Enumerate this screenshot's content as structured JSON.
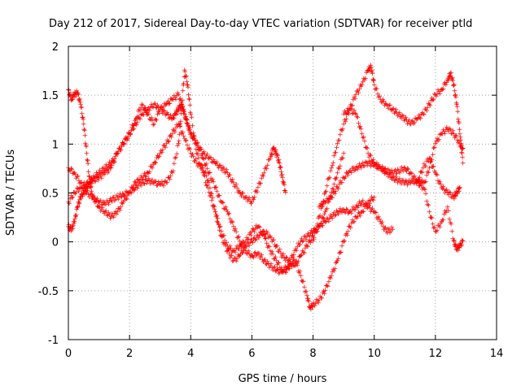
{
  "chart_data": {
    "type": "scatter",
    "title": "Day 212 of 2017, Sidereal Day-to-day VTEC variation (SDTVAR) for receiver ptld",
    "xlabel": "GPS time / hours",
    "ylabel": "SDTVAR / TECUs",
    "xlim": [
      0,
      14
    ],
    "ylim": [
      -1,
      2
    ],
    "xticks": [
      "0",
      "2",
      "4",
      "6",
      "8",
      "10",
      "12",
      "14"
    ],
    "yticks": [
      "-1",
      "-0.5",
      "0",
      "0.5",
      "1",
      "1.5",
      "2"
    ],
    "grid": true,
    "marker": "+",
    "color": "#ff0000",
    "series": [
      {
        "x": [
          0.0,
          0.1,
          0.2,
          0.3,
          0.4,
          0.5,
          0.6,
          0.7,
          0.8,
          1.0,
          1.2,
          1.4,
          1.6,
          1.8,
          2.0,
          2.2,
          2.4,
          2.6,
          2.8,
          3.0,
          3.2,
          3.4,
          3.5,
          3.6,
          3.7,
          3.8,
          3.9,
          4.0,
          4.2,
          4.4,
          4.6,
          4.8,
          5.0,
          5.2,
          5.4,
          5.6,
          5.8,
          6.0,
          6.2,
          6.4,
          6.6,
          6.7,
          6.8,
          6.9,
          7.0,
          7.1
        ],
        "y": [
          0.15,
          0.12,
          0.2,
          0.35,
          0.45,
          0.5,
          0.55,
          0.6,
          0.65,
          0.7,
          0.75,
          0.8,
          0.9,
          1.0,
          1.1,
          1.2,
          1.3,
          1.35,
          1.4,
          1.35,
          1.3,
          1.25,
          1.3,
          1.35,
          1.4,
          1.3,
          1.2,
          1.1,
          1.0,
          0.9,
          0.85,
          0.8,
          0.75,
          0.7,
          0.6,
          0.5,
          0.45,
          0.4,
          0.55,
          0.7,
          0.85,
          0.95,
          0.9,
          0.8,
          0.65,
          0.5
        ]
      },
      {
        "x": [
          0.0,
          0.1,
          0.2,
          0.3,
          0.4,
          0.5,
          0.6,
          0.7,
          0.8,
          1.0,
          1.2,
          1.4,
          1.6,
          1.8,
          2.0,
          2.2,
          2.4,
          2.6,
          2.8,
          3.0,
          3.2,
          3.4,
          3.6,
          3.8,
          4.0,
          4.2,
          4.4,
          4.6,
          4.8,
          5.0,
          5.2,
          5.4,
          5.6,
          5.8,
          6.0,
          6.2,
          6.4,
          6.6,
          6.8,
          7.0,
          7.2,
          7.4,
          7.6,
          7.8,
          8.0,
          8.2,
          8.4,
          8.6,
          8.8,
          9.0
        ],
        "y": [
          1.55,
          1.45,
          1.5,
          1.52,
          1.4,
          1.2,
          0.9,
          0.6,
          0.45,
          0.35,
          0.3,
          0.25,
          0.3,
          0.4,
          0.5,
          0.6,
          0.65,
          0.7,
          0.8,
          0.9,
          1.0,
          1.1,
          1.2,
          1.05,
          0.9,
          0.8,
          0.75,
          0.6,
          0.3,
          0.05,
          -0.1,
          -0.2,
          -0.15,
          -0.05,
          0.0,
          0.05,
          0.1,
          0.05,
          -0.05,
          -0.15,
          -0.2,
          -0.25,
          -0.15,
          -0.05,
          0.05,
          0.15,
          0.3,
          0.5,
          0.7,
          0.9
        ]
      },
      {
        "x": [
          0.0,
          0.2,
          0.4,
          0.6,
          0.8,
          1.0,
          1.2,
          1.4,
          1.6,
          1.8,
          2.0,
          2.2,
          2.4,
          2.6,
          2.8,
          3.0,
          3.2,
          3.4,
          3.6,
          3.7,
          3.8,
          3.9,
          4.0,
          4.2,
          4.4,
          4.6,
          4.8,
          5.0,
          5.2,
          5.4,
          5.6,
          5.8,
          6.0,
          6.2,
          6.4,
          6.6,
          6.8,
          7.0,
          7.2,
          7.4,
          7.6,
          7.8,
          8.0,
          8.2,
          8.4,
          8.6,
          8.8,
          9.0,
          9.2,
          9.4,
          9.6,
          9.8,
          10.0,
          10.2,
          10.4,
          10.6
        ],
        "y": [
          0.75,
          0.7,
          0.6,
          0.5,
          0.45,
          0.4,
          0.38,
          0.42,
          0.45,
          0.48,
          0.5,
          0.55,
          0.6,
          0.62,
          0.6,
          0.58,
          0.6,
          0.7,
          1.0,
          1.35,
          1.75,
          1.6,
          1.3,
          0.9,
          0.7,
          0.5,
          0.3,
          0.1,
          -0.05,
          -0.1,
          -0.05,
          0.0,
          0.1,
          0.15,
          0.05,
          -0.1,
          -0.2,
          -0.3,
          -0.25,
          -0.1,
          0.0,
          0.05,
          0.1,
          0.15,
          0.2,
          0.25,
          0.3,
          0.32,
          0.3,
          0.35,
          0.4,
          0.35,
          0.3,
          0.2,
          0.1,
          0.12
        ]
      },
      {
        "x": [
          0.0,
          0.2,
          0.4,
          0.6,
          0.8,
          1.0,
          1.2,
          1.4,
          1.6,
          1.8,
          2.0,
          2.2,
          2.4,
          2.6,
          2.8,
          3.0,
          3.2,
          3.4,
          3.6,
          3.8,
          4.0,
          4.2,
          4.4,
          4.6,
          4.8,
          5.0,
          5.2,
          5.4,
          5.6,
          5.8,
          6.0,
          6.2,
          6.4,
          6.6,
          6.8,
          7.0,
          7.2,
          7.4,
          7.6,
          7.8,
          7.9,
          8.0,
          8.2,
          8.4,
          8.6,
          8.8,
          9.0,
          9.2,
          9.4,
          9.6,
          9.8,
          10.0
        ],
        "y": [
          0.4,
          0.5,
          0.55,
          0.6,
          0.62,
          0.65,
          0.7,
          0.75,
          0.9,
          1.0,
          1.1,
          1.25,
          1.4,
          1.3,
          1.2,
          1.35,
          1.4,
          1.45,
          1.5,
          1.3,
          1.1,
          1.0,
          0.85,
          0.7,
          0.55,
          0.4,
          0.3,
          0.15,
          0.0,
          -0.1,
          -0.15,
          -0.12,
          -0.2,
          -0.25,
          -0.3,
          -0.32,
          -0.28,
          -0.2,
          -0.35,
          -0.55,
          -0.68,
          -0.65,
          -0.6,
          -0.5,
          -0.35,
          -0.2,
          0.0,
          0.15,
          0.25,
          0.3,
          0.4,
          0.45
        ]
      },
      {
        "x": [
          8.0,
          8.2,
          8.4,
          8.6,
          8.8,
          9.0,
          9.2,
          9.4,
          9.6,
          9.8,
          9.9,
          10.0,
          10.2,
          10.4,
          10.6,
          10.8,
          11.0,
          11.2,
          11.4,
          11.6,
          11.8,
          12.0,
          12.2,
          12.4,
          12.5,
          12.6,
          12.7,
          12.8,
          12.9
        ],
        "y": [
          0.0,
          0.25,
          0.5,
          0.75,
          1.0,
          1.2,
          1.35,
          1.5,
          1.6,
          1.75,
          1.78,
          1.6,
          1.45,
          1.4,
          1.35,
          1.3,
          1.25,
          1.2,
          1.25,
          1.3,
          1.4,
          1.5,
          1.55,
          1.65,
          1.72,
          1.6,
          1.4,
          1.1,
          0.8
        ]
      },
      {
        "x": [
          8.2,
          8.4,
          8.6,
          8.8,
          9.0,
          9.2,
          9.4,
          9.6,
          9.8,
          10.0,
          10.2,
          10.4,
          10.6,
          10.8,
          11.0,
          11.2,
          11.4,
          11.6,
          11.8,
          12.0,
          12.2,
          12.4,
          12.6,
          12.8,
          12.9
        ],
        "y": [
          0.35,
          0.4,
          0.45,
          0.55,
          0.65,
          0.72,
          0.75,
          0.78,
          0.8,
          0.78,
          0.75,
          0.72,
          0.7,
          0.72,
          0.75,
          0.7,
          0.6,
          0.55,
          0.75,
          1.0,
          1.1,
          1.15,
          1.1,
          1.0,
          0.95
        ]
      },
      {
        "x": [
          9.0,
          9.2,
          9.4,
          9.6,
          9.8,
          10.0,
          10.2,
          10.4,
          10.6,
          10.8,
          11.0,
          11.2,
          11.4,
          11.6,
          11.8,
          12.0,
          12.2,
          12.4,
          12.6,
          12.7,
          12.8,
          12.9
        ],
        "y": [
          1.3,
          1.35,
          1.3,
          1.1,
          0.9,
          0.8,
          0.75,
          0.7,
          0.65,
          0.62,
          0.6,
          0.6,
          0.62,
          0.6,
          0.3,
          0.1,
          0.2,
          0.35,
          0.0,
          -0.08,
          -0.05,
          0.0
        ]
      },
      {
        "x": [
          11.4,
          11.6,
          11.8,
          12.0,
          12.2,
          12.4,
          12.6,
          12.7,
          12.8
        ],
        "y": [
          0.6,
          0.75,
          0.85,
          0.7,
          0.55,
          0.5,
          0.45,
          0.5,
          0.55
        ]
      }
    ]
  }
}
